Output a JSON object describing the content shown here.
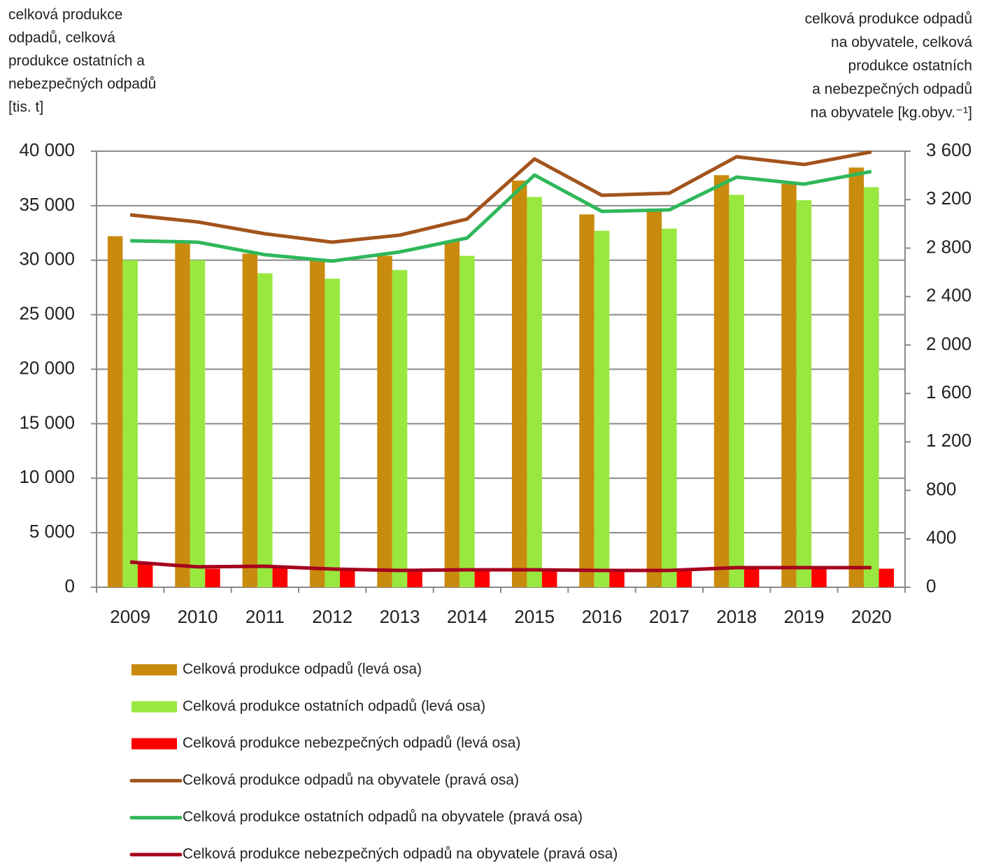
{
  "chart_data": {
    "type": "bar_line",
    "y_label_lines": [
      "celková produkce",
      "odpadů, celková",
      "produkce ostatních a",
      "nebezpečných odpadů",
      "[tis. t]"
    ],
    "y2_label_lines": [
      "celková produkce odpadů",
      "na obyvatele, celková",
      "produkce ostatních",
      "a nebezpečných odpadů",
      "na obyvatele [kg.obyv.⁻¹]"
    ],
    "categories": [
      "2009",
      "2010",
      "2011",
      "2012",
      "2013",
      "2014",
      "2015",
      "2016",
      "2017",
      "2018",
      "2019",
      "2020"
    ],
    "series": [
      {
        "name": "Celková produkce odpadů (levá osa)",
        "type": "bar",
        "color": "#c98b0d",
        "values": [
          32200,
          31700,
          30600,
          30100,
          30400,
          31800,
          37300,
          34200,
          34600,
          37800,
          37000,
          38500
        ]
      },
      {
        "name": "Celková produkce ostatních odpadů (levá osa)",
        "type": "bar",
        "color": "#99e83f",
        "values": [
          30000,
          30000,
          28800,
          28300,
          29100,
          30400,
          35800,
          32700,
          32900,
          36000,
          35500,
          36700
        ]
      },
      {
        "name": "Celková produkce nebezpečných odpadů (levá osa)",
        "type": "bar",
        "color": "#ff0000",
        "values": [
          2200,
          1700,
          1800,
          1700,
          1600,
          1700,
          1700,
          1600,
          1600,
          1700,
          1700,
          1700
        ]
      },
      {
        "name": "Celková produkce odpadů na obyvatele (pravá osa)",
        "type": "line",
        "axis": "y2",
        "color": "#a3541c",
        "values": [
          3074,
          3016,
          2918,
          2849,
          2907,
          3040,
          3536,
          3236,
          3253,
          3554,
          3490,
          3594
        ]
      },
      {
        "name": "Celková produkce ostatních odpadů na obyvatele (pravá osa)",
        "type": "line",
        "axis": "y2",
        "color": "#2fb85a",
        "values": [
          2860,
          2849,
          2745,
          2693,
          2768,
          2883,
          3403,
          3103,
          3115,
          3386,
          3328,
          3432
        ]
      },
      {
        "name": "Celková produkce nebezpečných odpadů na obyvatele (pravá osa)",
        "type": "line",
        "axis": "y2",
        "color": "#a5001e",
        "values": [
          208,
          168,
          173,
          150,
          139,
          144,
          144,
          139,
          139,
          162,
          162,
          162
        ]
      }
    ],
    "ylim": [
      0,
      40000
    ],
    "yticks": [
      0,
      {
        "value": 5000,
        "label": "5 000"
      },
      {
        "value": 10000,
        "label": "10 000"
      },
      {
        "value": 15000,
        "label": "15 000"
      },
      {
        "value": 20000,
        "label": "20 000"
      },
      {
        "value": 25000,
        "label": "25 000"
      },
      {
        "value": 30000,
        "label": "30 000"
      },
      {
        "value": 35000,
        "label": "35 000"
      },
      {
        "value": 40000,
        "label": "40 000"
      }
    ],
    "y2lim": [
      0,
      3600
    ],
    "y2ticks": [
      0,
      400,
      800,
      {
        "value": 1200,
        "label": "1 200"
      },
      {
        "value": 1600,
        "label": "1 600"
      },
      {
        "value": 2000,
        "label": "2 000"
      },
      {
        "value": 2400,
        "label": "2 400"
      },
      {
        "value": 2800,
        "label": "2 800"
      },
      {
        "value": 3200,
        "label": "3 200"
      },
      {
        "value": 3600,
        "label": "3 600"
      }
    ],
    "grid": true,
    "legend": "bottom"
  }
}
